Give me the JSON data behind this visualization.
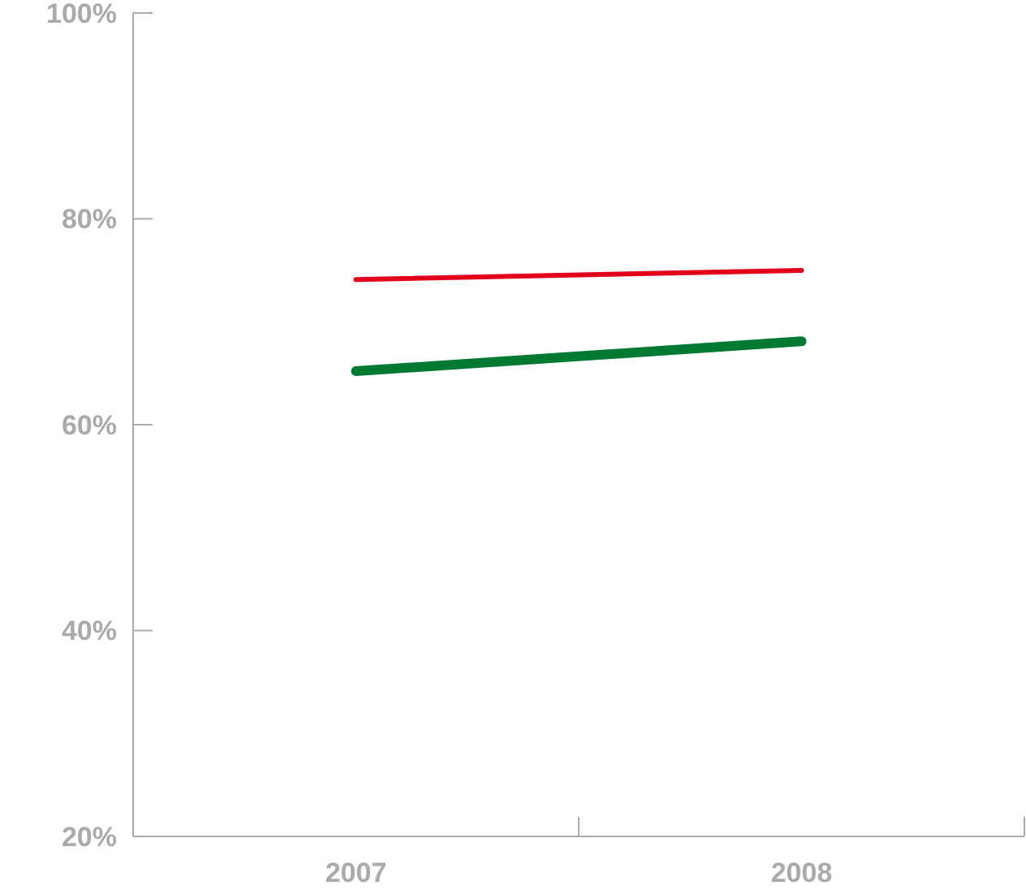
{
  "chart_data": {
    "type": "line",
    "categories": [
      "2007",
      "2008"
    ],
    "series": [
      {
        "color": "#e2001a",
        "values": [
          74.1,
          75.0
        ]
      },
      {
        "color": "#007a33",
        "values": [
          65.2,
          68.1
        ]
      }
    ],
    "ylim": [
      20,
      100
    ],
    "yticks": [
      {
        "value": 20,
        "label": "20%"
      },
      {
        "value": 40,
        "label": "40%"
      },
      {
        "value": 60,
        "label": "60%"
      },
      {
        "value": 80,
        "label": "80%"
      },
      {
        "value": 100,
        "label": "100%"
      }
    ],
    "marker": "none",
    "line_style": "solid"
  }
}
